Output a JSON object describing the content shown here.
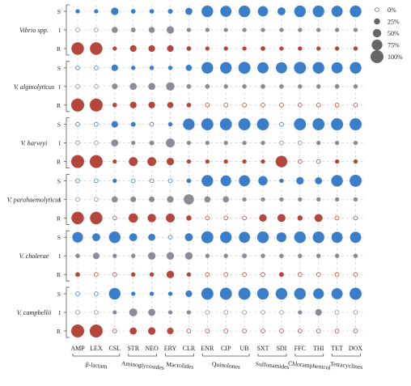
{
  "chart_data": {
    "type": "scatter",
    "description_type": "bubble matrix",
    "colors": {
      "S": "#3a7dc9",
      "I": "#8e8a96",
      "R": "#b5463c",
      "grid": "#c8c8c8"
    },
    "levels": [
      "S",
      "I",
      "R"
    ],
    "antibiotics": [
      "AMP",
      "LEX",
      "CSL",
      "STR",
      "NEO",
      "ERY",
      "CLR",
      "ENR",
      "CIP",
      "UB",
      "SXT",
      "SDI",
      "FFC",
      "THI",
      "TET",
      "DOX"
    ],
    "classes": [
      {
        "name": "β-lactam",
        "from": 0,
        "to": 2
      },
      {
        "name": "Aminoglycosides",
        "from": 3,
        "to": 4
      },
      {
        "name": "Macrolides",
        "from": 5,
        "to": 6
      },
      {
        "name": "Quinolones",
        "from": 7,
        "to": 9
      },
      {
        "name": "Sulfonamides",
        "from": 10,
        "to": 11
      },
      {
        "name": "Chloramphenicol",
        "from": 12,
        "to": 13
      },
      {
        "name": "Tetracyclines",
        "from": 14,
        "to": 15
      }
    ],
    "legend": [
      {
        "label": "0%",
        "value": 0
      },
      {
        "label": "25%",
        "value": 25
      },
      {
        "label": "50%",
        "value": 50
      },
      {
        "label": "75%",
        "value": 75
      },
      {
        "label": "100%",
        "value": 100
      }
    ],
    "groups": [
      {
        "name": "Vibrio spp.",
        "S": [
          5,
          5,
          40,
          8,
          8,
          10,
          35,
          85,
          80,
          85,
          70,
          45,
          85,
          85,
          80,
          85
        ],
        "I": [
          0,
          0,
          25,
          10,
          25,
          40,
          5,
          5,
          5,
          5,
          5,
          5,
          5,
          5,
          5,
          5
        ],
        "R": [
          95,
          95,
          5,
          30,
          30,
          30,
          8,
          5,
          5,
          5,
          8,
          5,
          5,
          5,
          5,
          5
        ]
      },
      {
        "name": "V. alginolyticus",
        "S": [
          0,
          0,
          30,
          5,
          5,
          5,
          25,
          85,
          85,
          90,
          80,
          80,
          90,
          85,
          80,
          85
        ],
        "I": [
          0,
          0,
          20,
          35,
          35,
          50,
          8,
          8,
          5,
          5,
          8,
          5,
          5,
          5,
          8,
          5
        ],
        "R": [
          100,
          100,
          8,
          30,
          30,
          25,
          8,
          0,
          0,
          0,
          0,
          0,
          0,
          0,
          0,
          0
        ]
      },
      {
        "name": "V. harveyi",
        "S": [
          0,
          0,
          30,
          10,
          0,
          5,
          85,
          90,
          90,
          90,
          90,
          0,
          90,
          90,
          90,
          90
        ],
        "I": [
          0,
          0,
          35,
          5,
          10,
          55,
          5,
          5,
          5,
          5,
          5,
          0,
          0,
          5,
          5,
          5
        ],
        "R": [
          100,
          100,
          5,
          55,
          55,
          40,
          5,
          5,
          5,
          5,
          5,
          85,
          0,
          0,
          5,
          5
        ]
      },
      {
        "name": "V. parahaemolyticus",
        "S": [
          0,
          0,
          5,
          0,
          0,
          0,
          8,
          85,
          75,
          80,
          60,
          5,
          40,
          35,
          85,
          90
        ],
        "I": [
          0,
          0,
          25,
          20,
          20,
          30,
          70,
          25,
          25,
          5,
          5,
          5,
          5,
          5,
          5,
          5
        ],
        "R": [
          95,
          95,
          0,
          60,
          50,
          55,
          15,
          0,
          0,
          0,
          40,
          45,
          15,
          45,
          0,
          0
        ]
      },
      {
        "name": "V. cholerae",
        "S": [
          75,
          45,
          85,
          45,
          35,
          0,
          45,
          90,
          85,
          80,
          85,
          65,
          85,
          85,
          80,
          80
        ],
        "I": [
          5,
          30,
          5,
          5,
          40,
          40,
          40,
          5,
          5,
          10,
          5,
          5,
          5,
          5,
          5,
          5
        ],
        "R": [
          8,
          0,
          0,
          5,
          5,
          40,
          5,
          0,
          0,
          0,
          0,
          10,
          0,
          0,
          0,
          0
        ]
      },
      {
        "name": "V. campbellii",
        "S": [
          0,
          0,
          85,
          5,
          5,
          5,
          30,
          90,
          90,
          90,
          85,
          85,
          85,
          75,
          80,
          90
        ],
        "I": [
          0,
          0,
          5,
          45,
          35,
          5,
          5,
          0,
          0,
          0,
          0,
          0,
          5,
          30,
          0,
          0
        ],
        "R": [
          100,
          100,
          0,
          35,
          40,
          30,
          0,
          0,
          0,
          0,
          0,
          0,
          0,
          0,
          0,
          0
        ]
      }
    ]
  }
}
